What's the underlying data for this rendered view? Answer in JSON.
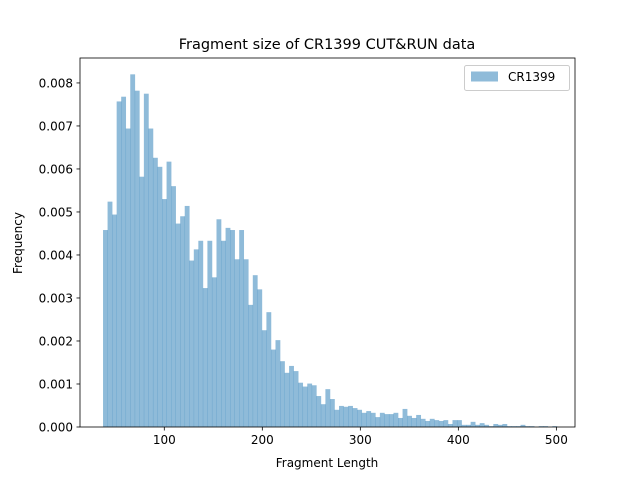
{
  "chart_data": {
    "type": "bar",
    "subtype": "histogram",
    "title": "Fragment size of CR1399 CUT&RUN data",
    "xlabel": "Fragment Length",
    "ylabel": "Frequency",
    "xlim": [
      14,
      519
    ],
    "ylim": [
      0,
      0.00858
    ],
    "xticks": [
      100,
      200,
      300,
      400,
      500
    ],
    "xtick_labels": [
      "100",
      "200",
      "300",
      "400",
      "500"
    ],
    "yticks": [
      0,
      0.001,
      0.002,
      0.003,
      0.004,
      0.005,
      0.006,
      0.007,
      0.008
    ],
    "ytick_labels": [
      "0.000",
      "0.001",
      "0.002",
      "0.003",
      "0.004",
      "0.005",
      "0.006",
      "0.007",
      "0.008"
    ],
    "grid": false,
    "legend_position": "top-right",
    "series": [
      {
        "name": "CR1399",
        "color": "#1f77b4",
        "alpha": 0.5,
        "bin_start": 37.5,
        "bin_width": 4.63,
        "values": [
          0.00458,
          0.00524,
          0.00494,
          0.00757,
          0.00768,
          0.00694,
          0.0082,
          0.00782,
          0.00582,
          0.00775,
          0.00694,
          0.00626,
          0.00605,
          0.0053,
          0.00617,
          0.0056,
          0.00473,
          0.0049,
          0.00514,
          0.00387,
          0.00413,
          0.00433,
          0.00323,
          0.00433,
          0.00348,
          0.00483,
          0.00433,
          0.00463,
          0.00458,
          0.0039,
          0.00458,
          0.0039,
          0.00284,
          0.00353,
          0.0032,
          0.00225,
          0.00267,
          0.0018,
          0.00202,
          0.00153,
          0.00126,
          0.00142,
          0.0013,
          0.00103,
          0.00094,
          0.00101,
          0.00097,
          0.00072,
          0.00053,
          0.00088,
          0.00065,
          0.0004,
          0.00049,
          0.00047,
          0.00049,
          0.00044,
          0.0004,
          0.00033,
          0.00037,
          0.00033,
          0.00023,
          0.00033,
          0.0003,
          0.0003,
          0.00033,
          0.00021,
          0.00042,
          0.00026,
          0.00021,
          0.00028,
          0.00019,
          0.00014,
          0.00019,
          0.00016,
          0.00014,
          0.00016,
          7e-05,
          0.00016,
          0.00016,
          5e-05,
          5e-05,
          0.00012,
          5e-05,
          9e-05,
          5e-05,
          2e-05,
          7e-05,
          5e-05,
          7e-05,
          2e-05,
          2e-05,
          2e-05,
          5e-05,
          2e-05,
          2e-05,
          0.0,
          2e-05,
          2e-05,
          0.0,
          2e-05
        ]
      }
    ]
  }
}
